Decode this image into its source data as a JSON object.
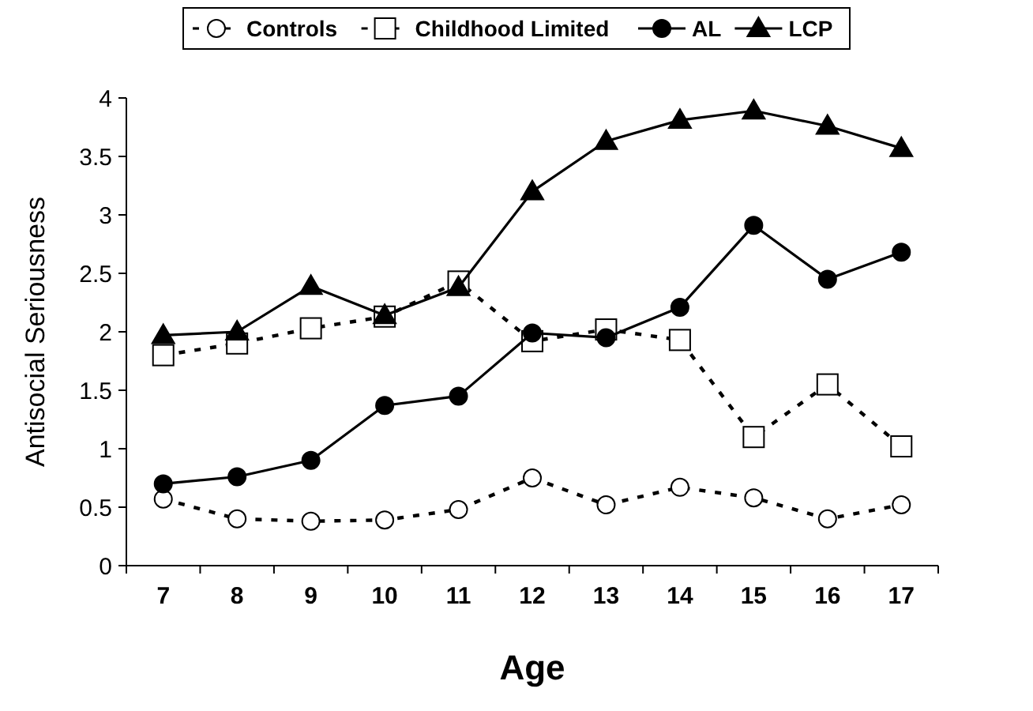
{
  "chart_data": {
    "type": "line",
    "xlabel": "Age",
    "ylabel": "Antisocial Seriousness",
    "categories": [
      "7",
      "8",
      "9",
      "10",
      "11",
      "12",
      "13",
      "14",
      "15",
      "16",
      "17"
    ],
    "ylim": [
      0,
      4
    ],
    "yticks": [
      0,
      0.5,
      1,
      1.5,
      2,
      2.5,
      3,
      3.5,
      4
    ],
    "grid": false,
    "legend": "top",
    "series": [
      {
        "name": "Controls",
        "color": "#000000",
        "marker": "circle",
        "line_style": "dashed",
        "values": [
          0.57,
          0.4,
          0.38,
          0.39,
          0.48,
          0.75,
          0.52,
          0.67,
          0.58,
          0.4,
          0.52
        ]
      },
      {
        "name": "Childhood Limited",
        "color": "#000000",
        "marker": "square",
        "line_style": "dashed",
        "values": [
          1.8,
          1.9,
          2.03,
          2.13,
          2.43,
          1.92,
          2.02,
          1.93,
          1.1,
          1.55,
          1.02
        ]
      },
      {
        "name": "AL",
        "color": "#000000",
        "marker": "circle",
        "line_style": "solid",
        "values": [
          0.7,
          0.76,
          0.9,
          1.37,
          1.45,
          1.99,
          1.95,
          2.21,
          2.91,
          2.45,
          2.68
        ]
      },
      {
        "name": "LCP",
        "color": "#000000",
        "marker": "triangle",
        "line_style": "solid",
        "values": [
          1.97,
          2.0,
          2.39,
          2.14,
          2.38,
          3.2,
          3.63,
          3.81,
          3.89,
          3.76,
          3.57
        ]
      }
    ]
  }
}
